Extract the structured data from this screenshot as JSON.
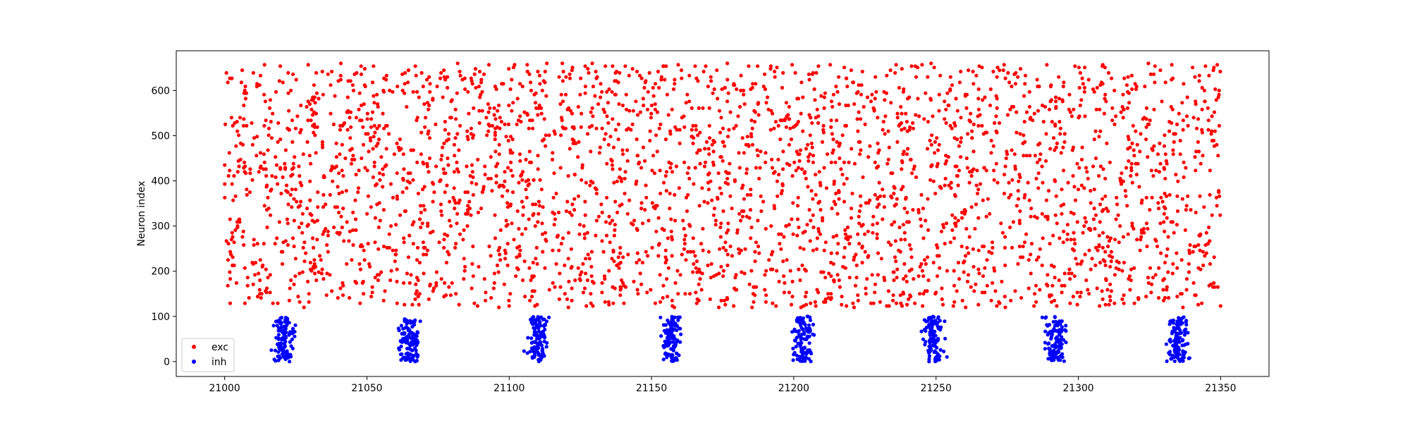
{
  "chart_data": {
    "type": "scatter",
    "title": "",
    "xlabel": "",
    "ylabel": "Neuron index",
    "xlim": [
      20983,
      21367
    ],
    "ylim": [
      -33,
      688
    ],
    "x_ticks": [
      21000,
      21050,
      21100,
      21150,
      21200,
      21250,
      21300,
      21350
    ],
    "y_ticks": [
      0,
      100,
      200,
      300,
      400,
      500,
      600
    ],
    "grid": false,
    "legend_position": "lower-left",
    "series": [
      {
        "name": "exc",
        "color": "#ff0000",
        "neuron_range": [
          120,
          660
        ],
        "t_start": 21000,
        "t_end": 21350,
        "description": "dense irregular excitatory spiking"
      },
      {
        "name": "inh",
        "color": "#0000ff",
        "neuron_range": [
          0,
          100
        ],
        "burst_centers": [
          21021,
          21065,
          21110,
          21157,
          21203,
          21249,
          21292,
          21335
        ],
        "burst_width": 5
      }
    ]
  }
}
